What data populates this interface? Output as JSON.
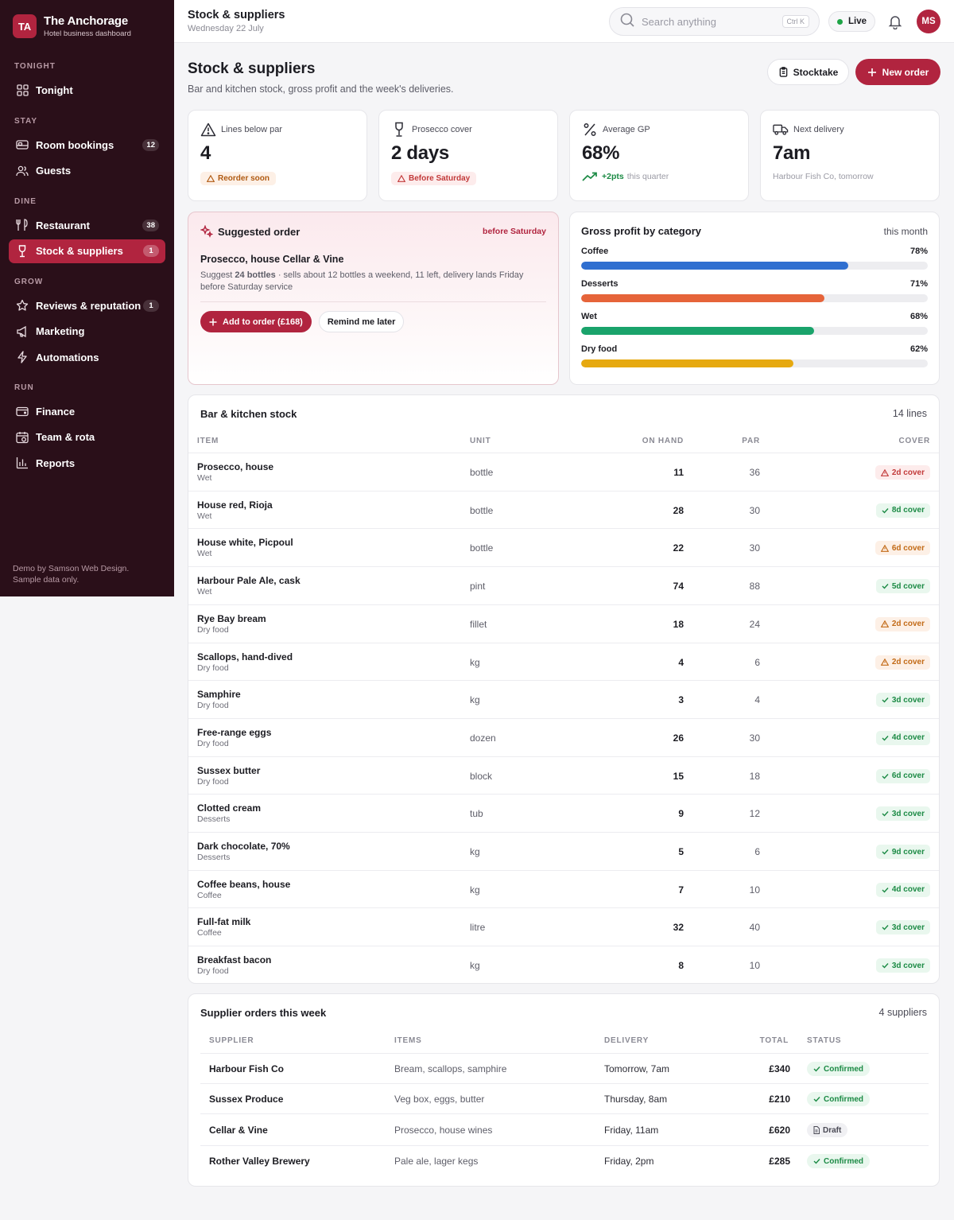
{
  "brand": {
    "initials": "TA",
    "name": "The Anchorage",
    "subtitle": "Hotel business dashboard"
  },
  "sidebar": {
    "sections": [
      {
        "label": "TONIGHT",
        "items": [
          {
            "label": "Tonight",
            "icon": "grid-icon",
            "badge": ""
          }
        ]
      },
      {
        "label": "STAY",
        "items": [
          {
            "label": "Room bookings",
            "icon": "bed-icon",
            "badge": "12"
          },
          {
            "label": "Guests",
            "icon": "users-icon",
            "badge": ""
          }
        ]
      },
      {
        "label": "DINE",
        "items": [
          {
            "label": "Restaurant",
            "icon": "utensils-icon",
            "badge": "38"
          },
          {
            "label": "Stock & suppliers",
            "icon": "wine-icon",
            "badge": "1",
            "active": true
          }
        ]
      },
      {
        "label": "GROW",
        "items": [
          {
            "label": "Reviews & reputation",
            "icon": "star-icon",
            "badge": "1"
          },
          {
            "label": "Marketing",
            "icon": "megaphone-icon",
            "badge": ""
          },
          {
            "label": "Automations",
            "icon": "bolt-icon",
            "badge": ""
          }
        ]
      },
      {
        "label": "RUN",
        "items": [
          {
            "label": "Finance",
            "icon": "wallet-icon",
            "badge": ""
          },
          {
            "label": "Team & rota",
            "icon": "calendar-icon",
            "badge": ""
          },
          {
            "label": "Reports",
            "icon": "bar-chart-icon",
            "badge": ""
          }
        ]
      }
    ],
    "footer_line1": "Demo by Samson Web Design.",
    "footer_line2": "Sample data only."
  },
  "topbar": {
    "title": "Stock & suppliers",
    "date": "Wednesday 22 July",
    "search_placeholder": "Search anything",
    "search_shortcut": "Ctrl K",
    "live_label": "Live",
    "avatar_initials": "MS"
  },
  "page": {
    "title": "Stock & suppliers",
    "subtitle": "Bar and kitchen stock, gross profit and the week's deliveries.",
    "stocktake_label": "Stocktake",
    "new_order_label": "New order"
  },
  "kpis": [
    {
      "label": "Lines below par",
      "value": "4",
      "pill": "Reorder soon",
      "pill_tone": "warn",
      "icon": "warning-triangle-icon"
    },
    {
      "label": "Prosecco cover",
      "value": "2 days",
      "pill": "Before Saturday",
      "pill_tone": "red",
      "icon": "wine-glass-icon"
    },
    {
      "label": "Average GP",
      "value": "68%",
      "note_strong": "+2pts",
      "note": "this quarter",
      "icon": "percent-icon"
    },
    {
      "label": "Next delivery",
      "value": "7am",
      "note": "Harbour Fish Co, tomorrow",
      "icon": "truck-icon"
    }
  ],
  "suggested": {
    "title": "Suggested order",
    "when": "before Saturday",
    "product": "Prosecco, house Cellar & Vine",
    "desc_prefix": "Suggest ",
    "desc_strong": "24 bottles",
    "desc_rest": " · sells about 12 bottles a weekend, 11 left, delivery lands Friday before Saturday service",
    "add_label": "Add to order (£168)",
    "later_label": "Remind me later"
  },
  "gp": {
    "title": "Gross profit by category",
    "period": "this month",
    "rows": [
      {
        "label": "Coffee",
        "value": 78,
        "display": "78%",
        "color": "#2f6fd0"
      },
      {
        "label": "Desserts",
        "value": 71,
        "display": "71%",
        "color": "#e6643a"
      },
      {
        "label": "Wet",
        "value": 68,
        "display": "68%",
        "color": "#1aa36b"
      },
      {
        "label": "Dry food",
        "value": 62,
        "display": "62%",
        "color": "#e6a910"
      }
    ]
  },
  "stock": {
    "title": "Bar & kitchen stock",
    "count": "14 lines",
    "columns": {
      "item": "ITEM",
      "unit": "UNIT",
      "on_hand": "ON HAND",
      "par": "PAR",
      "cover": "COVER"
    },
    "rows": [
      {
        "name": "Prosecco, house",
        "cat": "Wet",
        "unit": "bottle",
        "on_hand": "11",
        "par": "36",
        "cover": "2d cover",
        "tone": "bad"
      },
      {
        "name": "House red, Rioja",
        "cat": "Wet",
        "unit": "bottle",
        "on_hand": "28",
        "par": "30",
        "cover": "8d cover",
        "tone": "good"
      },
      {
        "name": "House white, Picpoul",
        "cat": "Wet",
        "unit": "bottle",
        "on_hand": "22",
        "par": "30",
        "cover": "6d cover",
        "tone": "warn"
      },
      {
        "name": "Harbour Pale Ale, cask",
        "cat": "Wet",
        "unit": "pint",
        "on_hand": "74",
        "par": "88",
        "cover": "5d cover",
        "tone": "good"
      },
      {
        "name": "Rye Bay bream",
        "cat": "Dry food",
        "unit": "fillet",
        "on_hand": "18",
        "par": "24",
        "cover": "2d cover",
        "tone": "warn"
      },
      {
        "name": "Scallops, hand-dived",
        "cat": "Dry food",
        "unit": "kg",
        "on_hand": "4",
        "par": "6",
        "cover": "2d cover",
        "tone": "warn"
      },
      {
        "name": "Samphire",
        "cat": "Dry food",
        "unit": "kg",
        "on_hand": "3",
        "par": "4",
        "cover": "3d cover",
        "tone": "good"
      },
      {
        "name": "Free-range eggs",
        "cat": "Dry food",
        "unit": "dozen",
        "on_hand": "26",
        "par": "30",
        "cover": "4d cover",
        "tone": "good"
      },
      {
        "name": "Sussex butter",
        "cat": "Dry food",
        "unit": "block",
        "on_hand": "15",
        "par": "18",
        "cover": "6d cover",
        "tone": "good"
      },
      {
        "name": "Clotted cream",
        "cat": "Desserts",
        "unit": "tub",
        "on_hand": "9",
        "par": "12",
        "cover": "3d cover",
        "tone": "good"
      },
      {
        "name": "Dark chocolate, 70%",
        "cat": "Desserts",
        "unit": "kg",
        "on_hand": "5",
        "par": "6",
        "cover": "9d cover",
        "tone": "good"
      },
      {
        "name": "Coffee beans, house",
        "cat": "Coffee",
        "unit": "kg",
        "on_hand": "7",
        "par": "10",
        "cover": "4d cover",
        "tone": "good"
      },
      {
        "name": "Full-fat milk",
        "cat": "Coffee",
        "unit": "litre",
        "on_hand": "32",
        "par": "40",
        "cover": "3d cover",
        "tone": "good"
      },
      {
        "name": "Breakfast bacon",
        "cat": "Dry food",
        "unit": "kg",
        "on_hand": "8",
        "par": "10",
        "cover": "3d cover",
        "tone": "good"
      }
    ]
  },
  "orders": {
    "title": "Supplier orders this week",
    "count": "4 suppliers",
    "columns": {
      "supplier": "SUPPLIER",
      "items": "ITEMS",
      "delivery": "DELIVERY",
      "total": "TOTAL",
      "status": "STATUS"
    },
    "rows": [
      {
        "supplier": "Harbour Fish Co",
        "items": "Bream, scallops, samphire",
        "delivery": "Tomorrow, 7am",
        "total": "£340",
        "status": "Confirmed",
        "tone": "confirmed"
      },
      {
        "supplier": "Sussex Produce",
        "items": "Veg box, eggs, butter",
        "delivery": "Thursday, 8am",
        "total": "£210",
        "status": "Confirmed",
        "tone": "confirmed"
      },
      {
        "supplier": "Cellar & Vine",
        "items": "Prosecco, house wines",
        "delivery": "Friday, 11am",
        "total": "£620",
        "status": "Draft",
        "tone": "draft"
      },
      {
        "supplier": "Rother Valley Brewery",
        "items": "Pale ale, lager kegs",
        "delivery": "Friday, 2pm",
        "total": "£285",
        "status": "Confirmed",
        "tone": "confirmed"
      }
    ]
  }
}
